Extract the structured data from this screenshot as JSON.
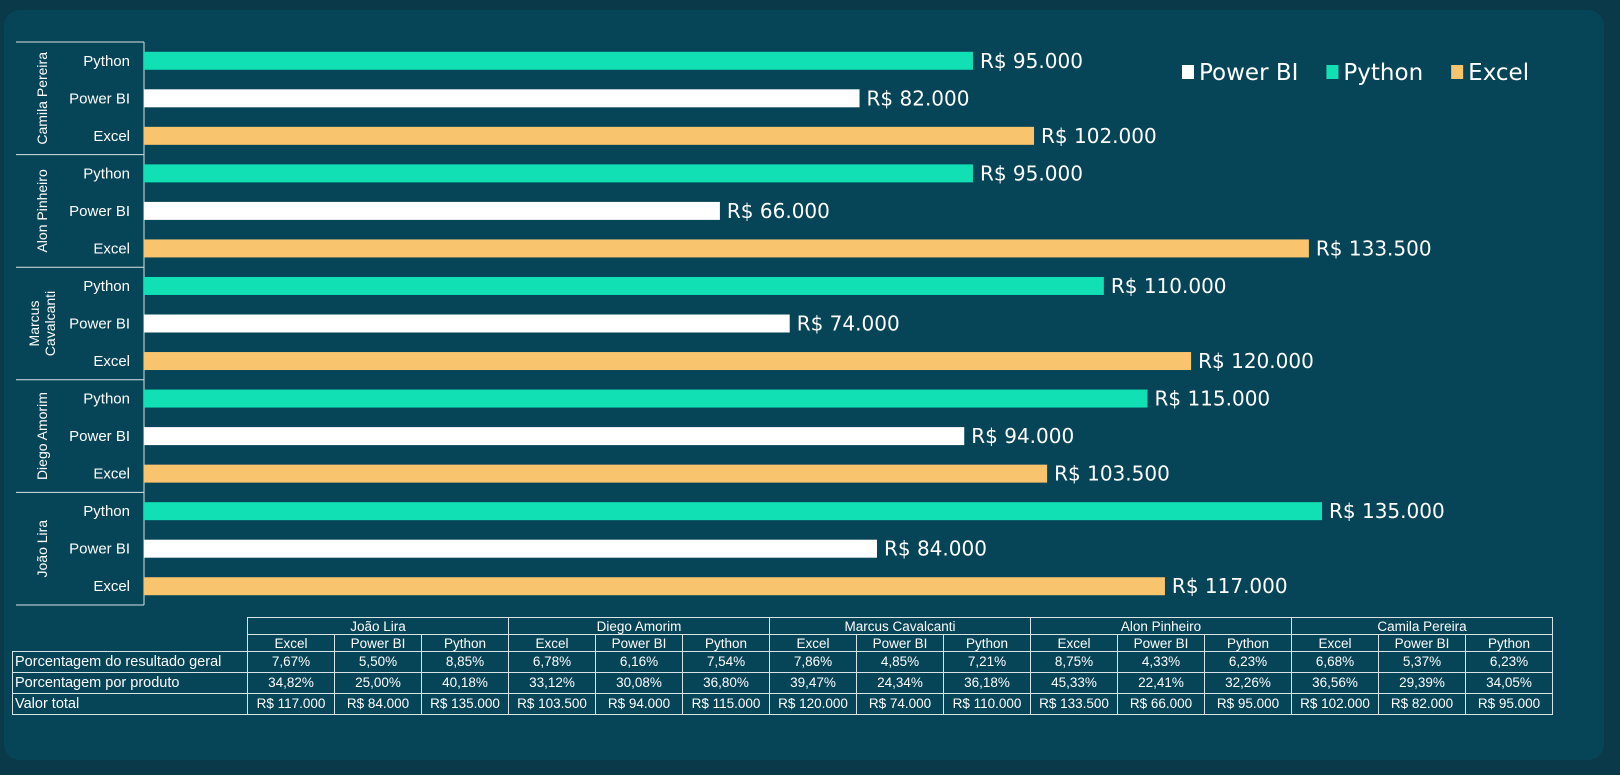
{
  "chart_data": {
    "type": "bar",
    "orientation": "horizontal",
    "groups": [
      "Camila Pereira",
      "Alon Pinheiro",
      "Marcus Cavalcanti",
      "Diego Amorim",
      "João Lira"
    ],
    "categories_per_group": [
      "Python",
      "Power BI",
      "Excel"
    ],
    "series": [
      {
        "name": "Power BI",
        "color": "#ffffff",
        "values": [
          82000,
          66000,
          74000,
          94000,
          84000
        ]
      },
      {
        "name": "Python",
        "color": "#11e0b4",
        "values": [
          95000,
          95000,
          110000,
          115000,
          135000
        ]
      },
      {
        "name": "Excel",
        "color": "#f9c46e",
        "values": [
          102000,
          133500,
          120000,
          103500,
          117000
        ]
      }
    ],
    "value_labels": {
      "Camila Pereira": {
        "Python": "R$ 95.000",
        "Power BI": "R$ 82.000",
        "Excel": "R$ 102.000"
      },
      "Alon Pinheiro": {
        "Python": "R$ 95.000",
        "Power BI": "R$ 66.000",
        "Excel": "R$ 133.500"
      },
      "Marcus Cavalcanti": {
        "Python": "R$ 110.000",
        "Power BI": "R$ 74.000",
        "Excel": "R$ 120.000"
      },
      "Diego Amorim": {
        "Python": "R$ 115.000",
        "Power BI": "R$ 94.000",
        "Excel": "R$ 103.500"
      },
      "João Lira": {
        "Python": "R$ 135.000",
        "Power BI": "R$ 84.000",
        "Excel": "R$ 117.000"
      }
    },
    "legend": [
      "Power BI",
      "Python",
      "Excel"
    ],
    "legend_position": "top-right",
    "xlim": [
      0,
      135000
    ],
    "grid": false,
    "title": "",
    "xlabel": "",
    "ylabel": ""
  },
  "table": {
    "people": [
      "João Lira",
      "Diego Amorim",
      "Marcus Cavalcanti",
      "Alon Pinheiro",
      "Camila Pereira"
    ],
    "products": [
      "Excel",
      "Power BI",
      "Python"
    ],
    "rows": [
      {
        "label": "Porcentagem do resultado geral",
        "values": [
          "7,67%",
          "5,50%",
          "8,85%",
          "6,78%",
          "6,16%",
          "7,54%",
          "7,86%",
          "4,85%",
          "7,21%",
          "8,75%",
          "4,33%",
          "6,23%",
          "6,68%",
          "5,37%",
          "6,23%"
        ]
      },
      {
        "label": "Porcentagem por produto",
        "values": [
          "34,82%",
          "25,00%",
          "40,18%",
          "33,12%",
          "30,08%",
          "36,80%",
          "39,47%",
          "24,34%",
          "36,18%",
          "45,33%",
          "22,41%",
          "32,26%",
          "36,56%",
          "29,39%",
          "34,05%"
        ]
      },
      {
        "label": "Valor total",
        "values": [
          "R$ 117.000",
          "R$ 84.000",
          "R$ 135.000",
          "R$ 103.500",
          "R$ 94.000",
          "R$ 115.000",
          "R$ 120.000",
          "R$ 74.000",
          "R$ 110.000",
          "R$ 133.500",
          "R$ 66.000",
          "R$ 95.000",
          "R$ 102.000",
          "R$ 82.000",
          "R$ 95.000"
        ]
      }
    ]
  },
  "colors": {
    "background": "#064457",
    "outer": "#0a3a4a",
    "python": "#11e0b4",
    "powerbi": "#ffffff",
    "excel": "#f9c46e"
  }
}
